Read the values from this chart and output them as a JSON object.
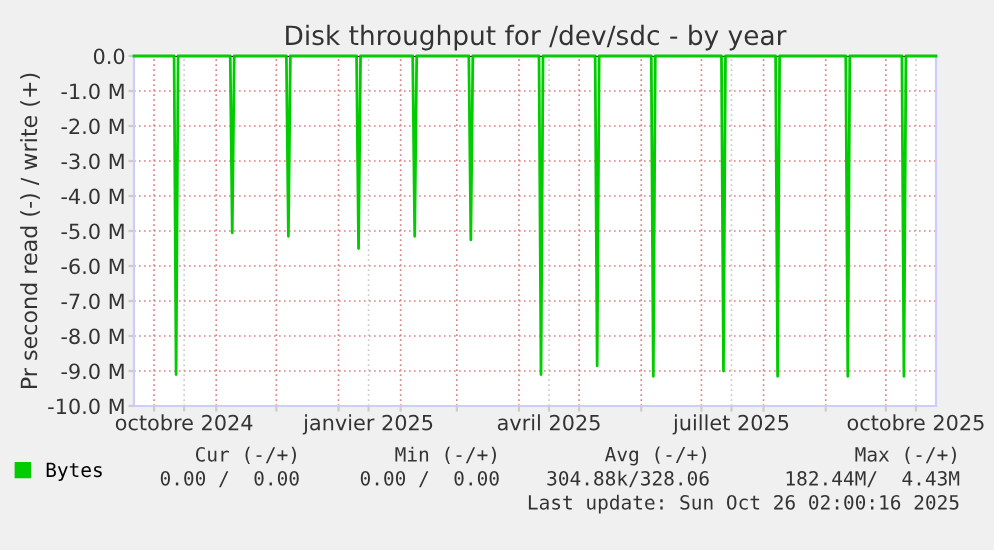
{
  "chart_data": {
    "type": "line",
    "title": "Disk throughput for /dev/sdc - by year",
    "ylabel": "Pr second read (-) / write (+)",
    "x": [
      "2024-09-21",
      "2024-10-11",
      "2024-10-12",
      "2024-10-13",
      "2024-11-08",
      "2024-11-09",
      "2024-11-10",
      "2024-12-06",
      "2024-12-07",
      "2024-12-08",
      "2025-01-10",
      "2025-01-11",
      "2025-01-12",
      "2025-02-07",
      "2025-02-08",
      "2025-02-09",
      "2025-03-07",
      "2025-03-08",
      "2025-03-09",
      "2025-04-11",
      "2025-04-12",
      "2025-04-13",
      "2025-05-09",
      "2025-05-10",
      "2025-05-11",
      "2025-06-06",
      "2025-06-07",
      "2025-06-08",
      "2025-07-11",
      "2025-07-12",
      "2025-07-13",
      "2025-08-07",
      "2025-08-08",
      "2025-08-09",
      "2025-09-11",
      "2025-09-12",
      "2025-09-13",
      "2025-10-09",
      "2025-10-10",
      "2025-10-11",
      "2025-10-26"
    ],
    "series": [
      {
        "name": "Bytes",
        "color": "#00cc00",
        "values": [
          0,
          0,
          -9100000,
          0,
          0,
          -5050000,
          0,
          0,
          -5150000,
          0,
          0,
          -5500000,
          0,
          0,
          -5150000,
          0,
          0,
          -5250000,
          0,
          0,
          -9100000,
          0,
          0,
          -8850000,
          0,
          0,
          -9150000,
          0,
          0,
          -9000000,
          0,
          0,
          -9150000,
          0,
          0,
          -9150000,
          0,
          0,
          -9150000,
          0,
          0
        ]
      }
    ],
    "xlim": [
      "2024-09-21",
      "2025-10-26"
    ],
    "xticks": [
      {
        "value": "2024-10-01",
        "label": null
      },
      {
        "value": "2024-10-16",
        "label": "octobre 2024"
      },
      {
        "value": "2024-11-01",
        "label": null
      },
      {
        "value": "2024-12-01",
        "label": null
      },
      {
        "value": "2025-01-01",
        "label": null
      },
      {
        "value": "2025-01-16",
        "label": "janvier 2025"
      },
      {
        "value": "2025-02-01",
        "label": null
      },
      {
        "value": "2025-03-01",
        "label": null
      },
      {
        "value": "2025-04-01",
        "label": null
      },
      {
        "value": "2025-04-16",
        "label": "avril 2025"
      },
      {
        "value": "2025-05-01",
        "label": null
      },
      {
        "value": "2025-06-01",
        "label": null
      },
      {
        "value": "2025-07-01",
        "label": null
      },
      {
        "value": "2025-07-16",
        "label": "juillet 2025"
      },
      {
        "value": "2025-08-01",
        "label": null
      },
      {
        "value": "2025-09-01",
        "label": null
      },
      {
        "value": "2025-10-01",
        "label": null
      },
      {
        "value": "2025-10-16",
        "label": "octobre 2025"
      }
    ],
    "ylim": [
      -10000000,
      0
    ],
    "yticks": [
      {
        "value": 0,
        "label": "0.0"
      },
      {
        "value": -1000000,
        "label": "-1.0 M"
      },
      {
        "value": -2000000,
        "label": "-2.0 M"
      },
      {
        "value": -3000000,
        "label": "-3.0 M"
      },
      {
        "value": -4000000,
        "label": "-4.0 M"
      },
      {
        "value": -5000000,
        "label": "-5.0 M"
      },
      {
        "value": -6000000,
        "label": "-6.0 M"
      },
      {
        "value": -7000000,
        "label": "-7.0 M"
      },
      {
        "value": -8000000,
        "label": "-8.0 M"
      },
      {
        "value": -9000000,
        "label": "-9.0 M"
      },
      {
        "value": -10000000,
        "label": "-10.0 M"
      }
    ],
    "ref_lines": [
      {
        "axis": "y",
        "value": 0,
        "color": "#000000"
      }
    ],
    "grid": true,
    "legend": "bottom left",
    "marker": "none",
    "line_style": "solid",
    "annotations": [
      "Cur (-/+)",
      "Min (-/+)",
      "Avg (-/+)",
      "Max (-/+)",
      "0.00 /  0.00",
      "0.00 /  0.00",
      "304.88k/328.06",
      "182.44M/  4.43M",
      "Last update: Sun Oct 26 02:00:16 2025"
    ]
  }
}
